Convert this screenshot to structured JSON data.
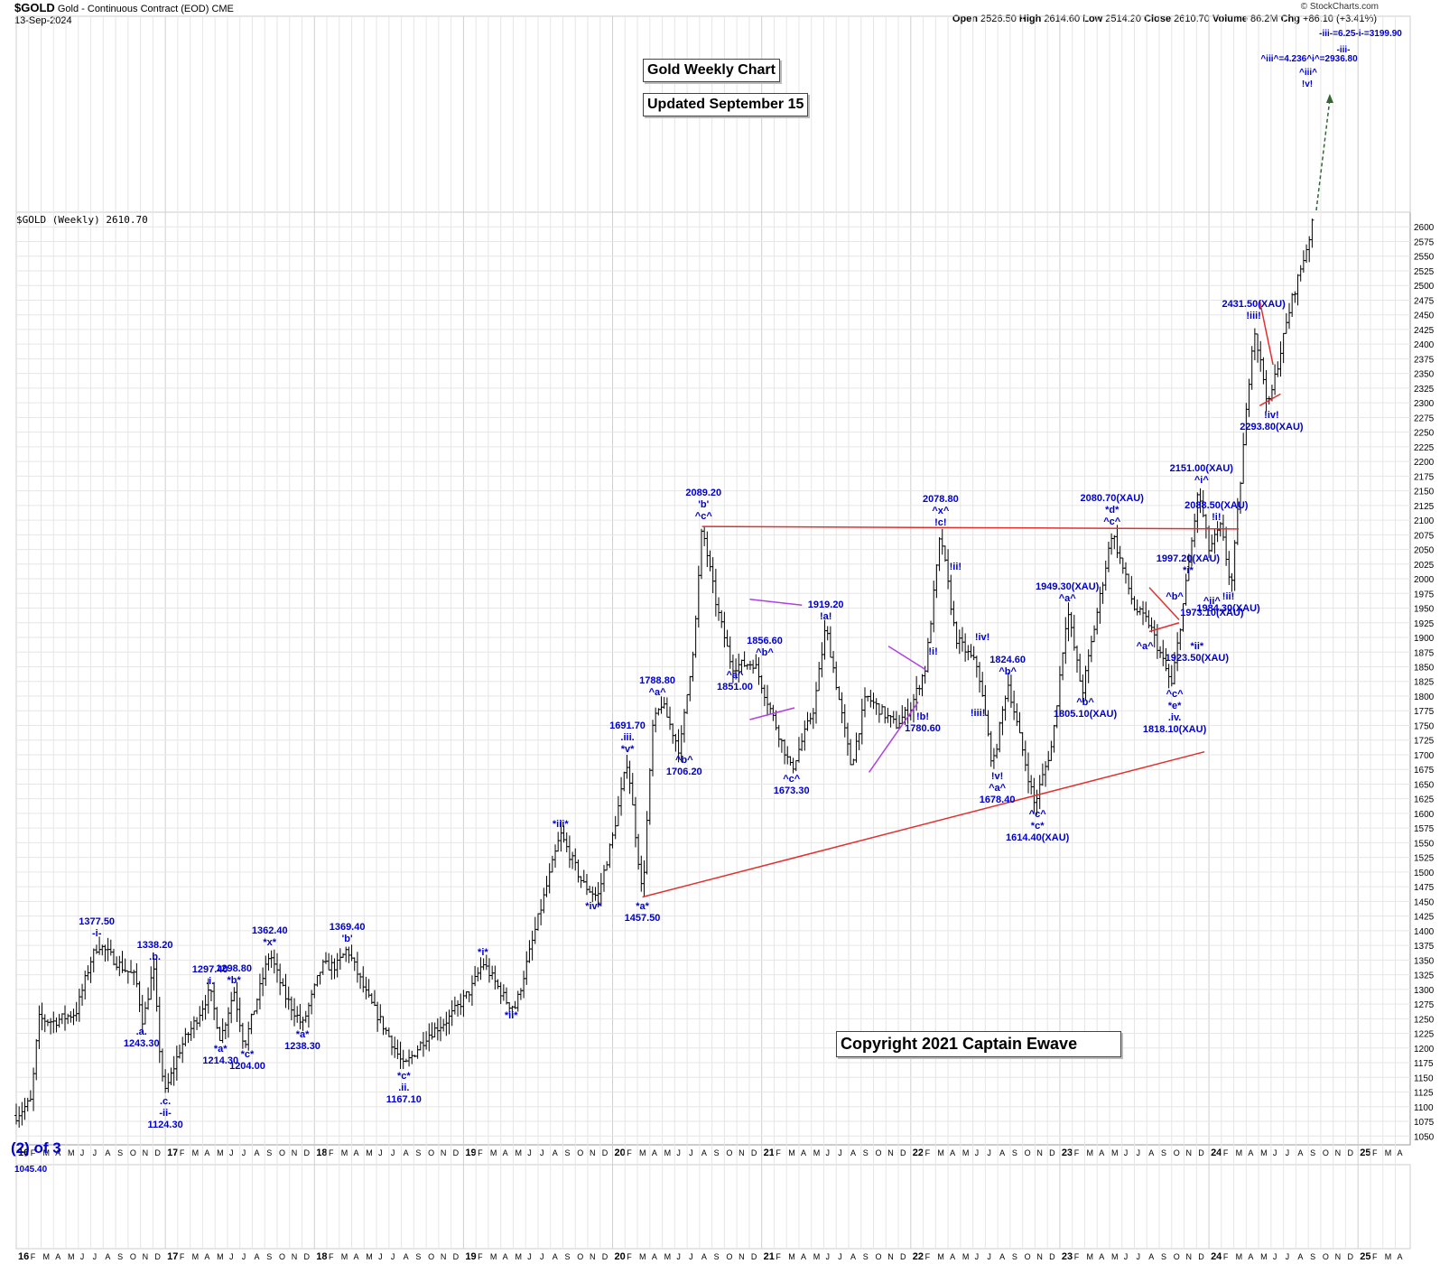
{
  "header": {
    "symbol": "$GOLD",
    "description": "Gold - Continuous Contract (EOD)",
    "exchange": "CME",
    "date": "13-Sep-2024",
    "open_label": "Open",
    "open": "2526.50",
    "high_label": "High",
    "high": "2614.60",
    "low_label": "Low",
    "low": "2514.20",
    "close_label": "Close",
    "close": "2610.70",
    "volume_label": "Volume",
    "volume": "86.2M",
    "chg_label": "Chg",
    "chg": "+86.10 (+3.41%)",
    "source": "© StockCharts.com"
  },
  "boxes": {
    "title": "Gold Weekly Chart",
    "updated": "Updated September 15",
    "copyright": "Copyright 2021 Captain Ewave"
  },
  "panel_label": "$GOLD (Weekly) 2610.70",
  "bottom": {
    "big": "(2) of 3",
    "small": "1045.40"
  },
  "colors": {
    "labels": "#0000cc",
    "bars": "#000000",
    "trendline": "#e03030",
    "triangle": "#b040e0",
    "grid": "#dddddd"
  },
  "chart_data": {
    "type": "ohlc",
    "title": "Gold Weekly Chart",
    "ylim": [
      1035,
      2625
    ],
    "y_ticks": [
      1050,
      1075,
      1100,
      1125,
      1150,
      1175,
      1200,
      1225,
      1250,
      1275,
      1300,
      1325,
      1350,
      1375,
      1400,
      1425,
      1450,
      1475,
      1500,
      1525,
      1550,
      1575,
      1600,
      1625,
      1650,
      1675,
      1700,
      1725,
      1750,
      1775,
      1800,
      1825,
      1850,
      1875,
      1900,
      1925,
      1950,
      1975,
      2000,
      2025,
      2050,
      2075,
      2100,
      2125,
      2150,
      2175,
      2200,
      2225,
      2250,
      2275,
      2300,
      2325,
      2350,
      2375,
      2400,
      2425,
      2450,
      2475,
      2500,
      2525,
      2550,
      2575,
      2600
    ],
    "x_axis_labels": [
      "16",
      "F",
      "M",
      "A",
      "M",
      "J",
      "J",
      "A",
      "S",
      "O",
      "N",
      "D",
      "17",
      "F",
      "M",
      "A",
      "M",
      "J",
      "J",
      "A",
      "S",
      "O",
      "N",
      "D",
      "18",
      "F",
      "M",
      "A",
      "M",
      "J",
      "J",
      "A",
      "S",
      "O",
      "N",
      "D",
      "19",
      "F",
      "M",
      "A",
      "M",
      "J",
      "J",
      "A",
      "S",
      "O",
      "N",
      "D",
      "20",
      "F",
      "M",
      "A",
      "M",
      "J",
      "J",
      "A",
      "S",
      "O",
      "N",
      "D",
      "21",
      "F",
      "M",
      "A",
      "M",
      "J",
      "J",
      "A",
      "S",
      "O",
      "N",
      "D",
      "22",
      "F",
      "M",
      "A",
      "M",
      "J",
      "J",
      "A",
      "S",
      "O",
      "N",
      "D",
      "23",
      "F",
      "M",
      "A",
      "M",
      "J",
      "J",
      "A",
      "S",
      "O",
      "N",
      "D",
      "24",
      "F",
      "M",
      "A",
      "M",
      "J",
      "J",
      "A",
      "S",
      "O",
      "N",
      "D",
      "25",
      "F",
      "M",
      "A"
    ],
    "price_path": [
      [
        2016.0,
        1085
      ],
      [
        2016.1,
        1110
      ],
      [
        2016.15,
        1250
      ],
      [
        2016.25,
        1245
      ],
      [
        2016.4,
        1260
      ],
      [
        2016.5,
        1350
      ],
      [
        2016.55,
        1377.5
      ],
      [
        2016.7,
        1340
      ],
      [
        2016.8,
        1320
      ],
      [
        2016.85,
        1243.3
      ],
      [
        2016.92,
        1338.2
      ],
      [
        2016.97,
        1170
      ],
      [
        2017.0,
        1124.3
      ],
      [
        2017.1,
        1200
      ],
      [
        2017.2,
        1245
      ],
      [
        2017.3,
        1297.4
      ],
      [
        2017.37,
        1214.3
      ],
      [
        2017.46,
        1298.8
      ],
      [
        2017.53,
        1204.0
      ],
      [
        2017.6,
        1270
      ],
      [
        2017.7,
        1362.4
      ],
      [
        2017.8,
        1290
      ],
      [
        2017.92,
        1238.3
      ],
      [
        2018.05,
        1340
      ],
      [
        2018.15,
        1340
      ],
      [
        2018.22,
        1369.4
      ],
      [
        2018.35,
        1290
      ],
      [
        2018.5,
        1220
      ],
      [
        2018.6,
        1167.1
      ],
      [
        2018.75,
        1220
      ],
      [
        2018.9,
        1250
      ],
      [
        2019.05,
        1300
      ],
      [
        2019.13,
        1346
      ],
      [
        2019.3,
        1275
      ],
      [
        2019.35,
        1270
      ],
      [
        2019.5,
        1420
      ],
      [
        2019.65,
        1565
      ],
      [
        2019.8,
        1480
      ],
      [
        2019.9,
        1457
      ],
      [
        2020.0,
        1560
      ],
      [
        2020.1,
        1691.7
      ],
      [
        2020.2,
        1457.5
      ],
      [
        2020.27,
        1750
      ],
      [
        2020.33,
        1788.8
      ],
      [
        2020.45,
        1706.2
      ],
      [
        2020.55,
        1900
      ],
      [
        2020.6,
        2089.2
      ],
      [
        2020.7,
        1950
      ],
      [
        2020.8,
        1851
      ],
      [
        2020.95,
        1856.6
      ],
      [
        2021.2,
        1673.3
      ],
      [
        2021.35,
        1780
      ],
      [
        2021.43,
        1919.2
      ],
      [
        2021.6,
        1680
      ],
      [
        2021.7,
        1800
      ],
      [
        2021.9,
        1750
      ],
      [
        2022.0,
        1780.6
      ],
      [
        2022.1,
        1850
      ],
      [
        2022.2,
        2078.8
      ],
      [
        2022.3,
        1900
      ],
      [
        2022.45,
        1850
      ],
      [
        2022.55,
        1678.4
      ],
      [
        2022.65,
        1824.6
      ],
      [
        2022.83,
        1614.4
      ],
      [
        2022.95,
        1720
      ],
      [
        2023.05,
        1949.3
      ],
      [
        2023.15,
        1805.1
      ],
      [
        2023.35,
        2080.7
      ],
      [
        2023.5,
        1950
      ],
      [
        2023.6,
        1923.5
      ],
      [
        2023.75,
        1818.1
      ],
      [
        2023.85,
        1997.2
      ],
      [
        2023.93,
        2151
      ],
      [
        2024.0,
        2050
      ],
      [
        2024.08,
        2088.5
      ],
      [
        2024.15,
        1984.3
      ],
      [
        2024.3,
        2431.5
      ],
      [
        2024.4,
        2293.8
      ],
      [
        2024.55,
        2470
      ],
      [
        2024.65,
        2560
      ],
      [
        2024.7,
        2610.7
      ]
    ],
    "trendlines": [
      {
        "from": [
          2020.6,
          2089.2
        ],
        "to": [
          2024.2,
          2085
        ]
      },
      {
        "from": [
          2020.2,
          1457.5
        ],
        "to": [
          2023.97,
          1705
        ]
      },
      {
        "from": [
          2023.6,
          1985
        ],
        "to": [
          2023.8,
          1930
        ]
      },
      {
        "from": [
          2023.6,
          1910
        ],
        "to": [
          2023.8,
          1925
        ]
      },
      {
        "from": [
          2024.34,
          2295
        ],
        "to": [
          2024.48,
          2315
        ]
      },
      {
        "from": [
          2024.34,
          2475
        ],
        "to": [
          2024.43,
          2365
        ]
      }
    ],
    "triangles": [
      {
        "from": [
          2020.92,
          1965
        ],
        "to": [
          2021.27,
          1955
        ]
      },
      {
        "from": [
          2020.92,
          1760
        ],
        "to": [
          2021.22,
          1780
        ]
      },
      {
        "from": [
          2021.72,
          1670
        ],
        "to": [
          2022.05,
          1790
        ]
      },
      {
        "from": [
          2021.85,
          1885
        ],
        "to": [
          2022.1,
          1845
        ]
      }
    ],
    "projection": {
      "from": [
        2024.72,
        2625
      ],
      "to": [
        2024.75,
        3170
      ]
    },
    "annotations": [
      {
        "x": 2016.54,
        "y": 1377.5,
        "text": "1377.50\n-i-",
        "pos": "above"
      },
      {
        "x": 2016.93,
        "y": 1338.2,
        "text": "1338.20\n.b.",
        "pos": "above"
      },
      {
        "x": 2016.84,
        "y": 1243.3,
        "text": ".a.\n1243.30",
        "pos": "below"
      },
      {
        "x": 2017.0,
        "y": 1124.3,
        "text": ".c.\n-ii-\n1124.30",
        "pos": "below"
      },
      {
        "x": 2017.3,
        "y": 1297.4,
        "text": "1297.40\n.i.",
        "pos": "above"
      },
      {
        "x": 2017.46,
        "y": 1298.8,
        "text": "1298.80\n*b*",
        "pos": "above"
      },
      {
        "x": 2017.37,
        "y": 1214.3,
        "text": "*a*\n1214.30",
        "pos": "below"
      },
      {
        "x": 2017.55,
        "y": 1204.0,
        "text": "*c*\n1204.00",
        "pos": "below"
      },
      {
        "x": 2017.7,
        "y": 1362.4,
        "text": "1362.40\n*x*",
        "pos": "above"
      },
      {
        "x": 2017.92,
        "y": 1238.3,
        "text": "*a*\n1238.30",
        "pos": "below"
      },
      {
        "x": 2018.22,
        "y": 1369.4,
        "text": "1369.40\n'b'",
        "pos": "above"
      },
      {
        "x": 2018.6,
        "y": 1167.1,
        "text": "*c*\n.ii.\n1167.10",
        "pos": "below"
      },
      {
        "x": 2019.13,
        "y": 1346,
        "text": "*i*",
        "pos": "above"
      },
      {
        "x": 2019.32,
        "y": 1270,
        "text": "*ii*",
        "pos": "below"
      },
      {
        "x": 2019.65,
        "y": 1565,
        "text": "*iii*",
        "pos": "above"
      },
      {
        "x": 2019.87,
        "y": 1457,
        "text": "*iv*",
        "pos": "below"
      },
      {
        "x": 2020.1,
        "y": 1691.7,
        "text": "1691.70\n.iii.\n*v*",
        "pos": "above3"
      },
      {
        "x": 2020.2,
        "y": 1457.5,
        "text": "*a*\n1457.50",
        "pos": "below"
      },
      {
        "x": 2020.3,
        "y": 1788.8,
        "text": "1788.80\n^a^",
        "pos": "above"
      },
      {
        "x": 2020.48,
        "y": 1706.2,
        "text": "^b^\n1706.20",
        "pos": "below"
      },
      {
        "x": 2020.61,
        "y": 2089.2,
        "text": "2089.20\n'b'\n^c^",
        "pos": "above"
      },
      {
        "x": 2020.82,
        "y": 1851,
        "text": "^a^\n1851.00",
        "pos": "below"
      },
      {
        "x": 2021.02,
        "y": 1856.6,
        "text": "1856.60\n^b^",
        "pos": "above"
      },
      {
        "x": 2021.2,
        "y": 1673.3,
        "text": "^c^\n1673.30",
        "pos": "below"
      },
      {
        "x": 2021.43,
        "y": 1919.2,
        "text": "1919.20\n!a!",
        "pos": "above"
      },
      {
        "x": 2022.08,
        "y": 1780.6,
        "text": "!b!\n1780.60",
        "pos": "below"
      },
      {
        "x": 2022.2,
        "y": 2078.8,
        "text": "2078.80\n^x^\n!c!",
        "pos": "above"
      },
      {
        "x": 2022.15,
        "y": 1875,
        "text": "!i!",
        "pos": "at"
      },
      {
        "x": 2022.3,
        "y": 2020,
        "text": "!ii!",
        "pos": "at"
      },
      {
        "x": 2022.48,
        "y": 1900,
        "text": "!iv!",
        "pos": "at"
      },
      {
        "x": 2022.45,
        "y": 1770,
        "text": "!iii!",
        "pos": "at"
      },
      {
        "x": 2022.65,
        "y": 1824.6,
        "text": "1824.60\n^b^",
        "pos": "above"
      },
      {
        "x": 2022.58,
        "y": 1678.4,
        "text": "!v!\n^a^\n1678.40",
        "pos": "below"
      },
      {
        "x": 2022.85,
        "y": 1614.4,
        "text": "^c^\n*c*\n1614.40(XAU)",
        "pos": "below"
      },
      {
        "x": 2023.05,
        "y": 1949.3,
        "text": "1949.30(XAU)\n^a^",
        "pos": "above"
      },
      {
        "x": 2023.17,
        "y": 1805.1,
        "text": "^b^\n1805.10(XAU)",
        "pos": "below"
      },
      {
        "x": 2023.35,
        "y": 2080.7,
        "text": "2080.70(XAU)\n*d*\n^c^",
        "pos": "above"
      },
      {
        "x": 2023.57,
        "y": 1900,
        "text": "^a^",
        "pos": "below"
      },
      {
        "x": 2023.77,
        "y": 1970,
        "text": "^b^",
        "pos": "at"
      },
      {
        "x": 2023.77,
        "y": 1818.1,
        "text": "^c^\n*e*\n.iv.\n1818.10(XAU)",
        "pos": "below"
      },
      {
        "x": 2023.86,
        "y": 1997.2,
        "text": "1997.20(XAU)\n*i*",
        "pos": "above"
      },
      {
        "x": 2023.92,
        "y": 1900,
        "text": "*ii*\n1923.50(XAU)",
        "pos": "below"
      },
      {
        "x": 2023.95,
        "y": 2151,
        "text": "2151.00(XAU)\n^i^",
        "pos": "above"
      },
      {
        "x": 2024.05,
        "y": 2088.5,
        "text": "2088.50(XAU)\n!i!",
        "pos": "above"
      },
      {
        "x": 2024.02,
        "y": 1962,
        "text": "^ii^\n1973.10(XAU)",
        "pos": "at"
      },
      {
        "x": 2024.13,
        "y": 1984.3,
        "text": "!ii!\n1984.30(XAU)",
        "pos": "below"
      },
      {
        "x": 2024.3,
        "y": 2431.5,
        "text": "2431.50(XAU)\n!iii!",
        "pos": "above"
      },
      {
        "x": 2024.42,
        "y": 2293.8,
        "text": "!iv!\n2293.80(XAU)",
        "pos": "below"
      }
    ],
    "projection_labels": [
      {
        "text": "-iii-=6.25-i-=3199.90",
        "x": 1507,
        "y": 37
      },
      {
        "text": "-iii-",
        "x": 1488,
        "y": 55
      },
      {
        "text": "^iii^=4.236^i^=2936.80",
        "x": 1450,
        "y": 65
      },
      {
        "text": "^iii^",
        "x": 1449,
        "y": 80
      },
      {
        "text": "!v!",
        "x": 1448,
        "y": 93
      }
    ]
  }
}
